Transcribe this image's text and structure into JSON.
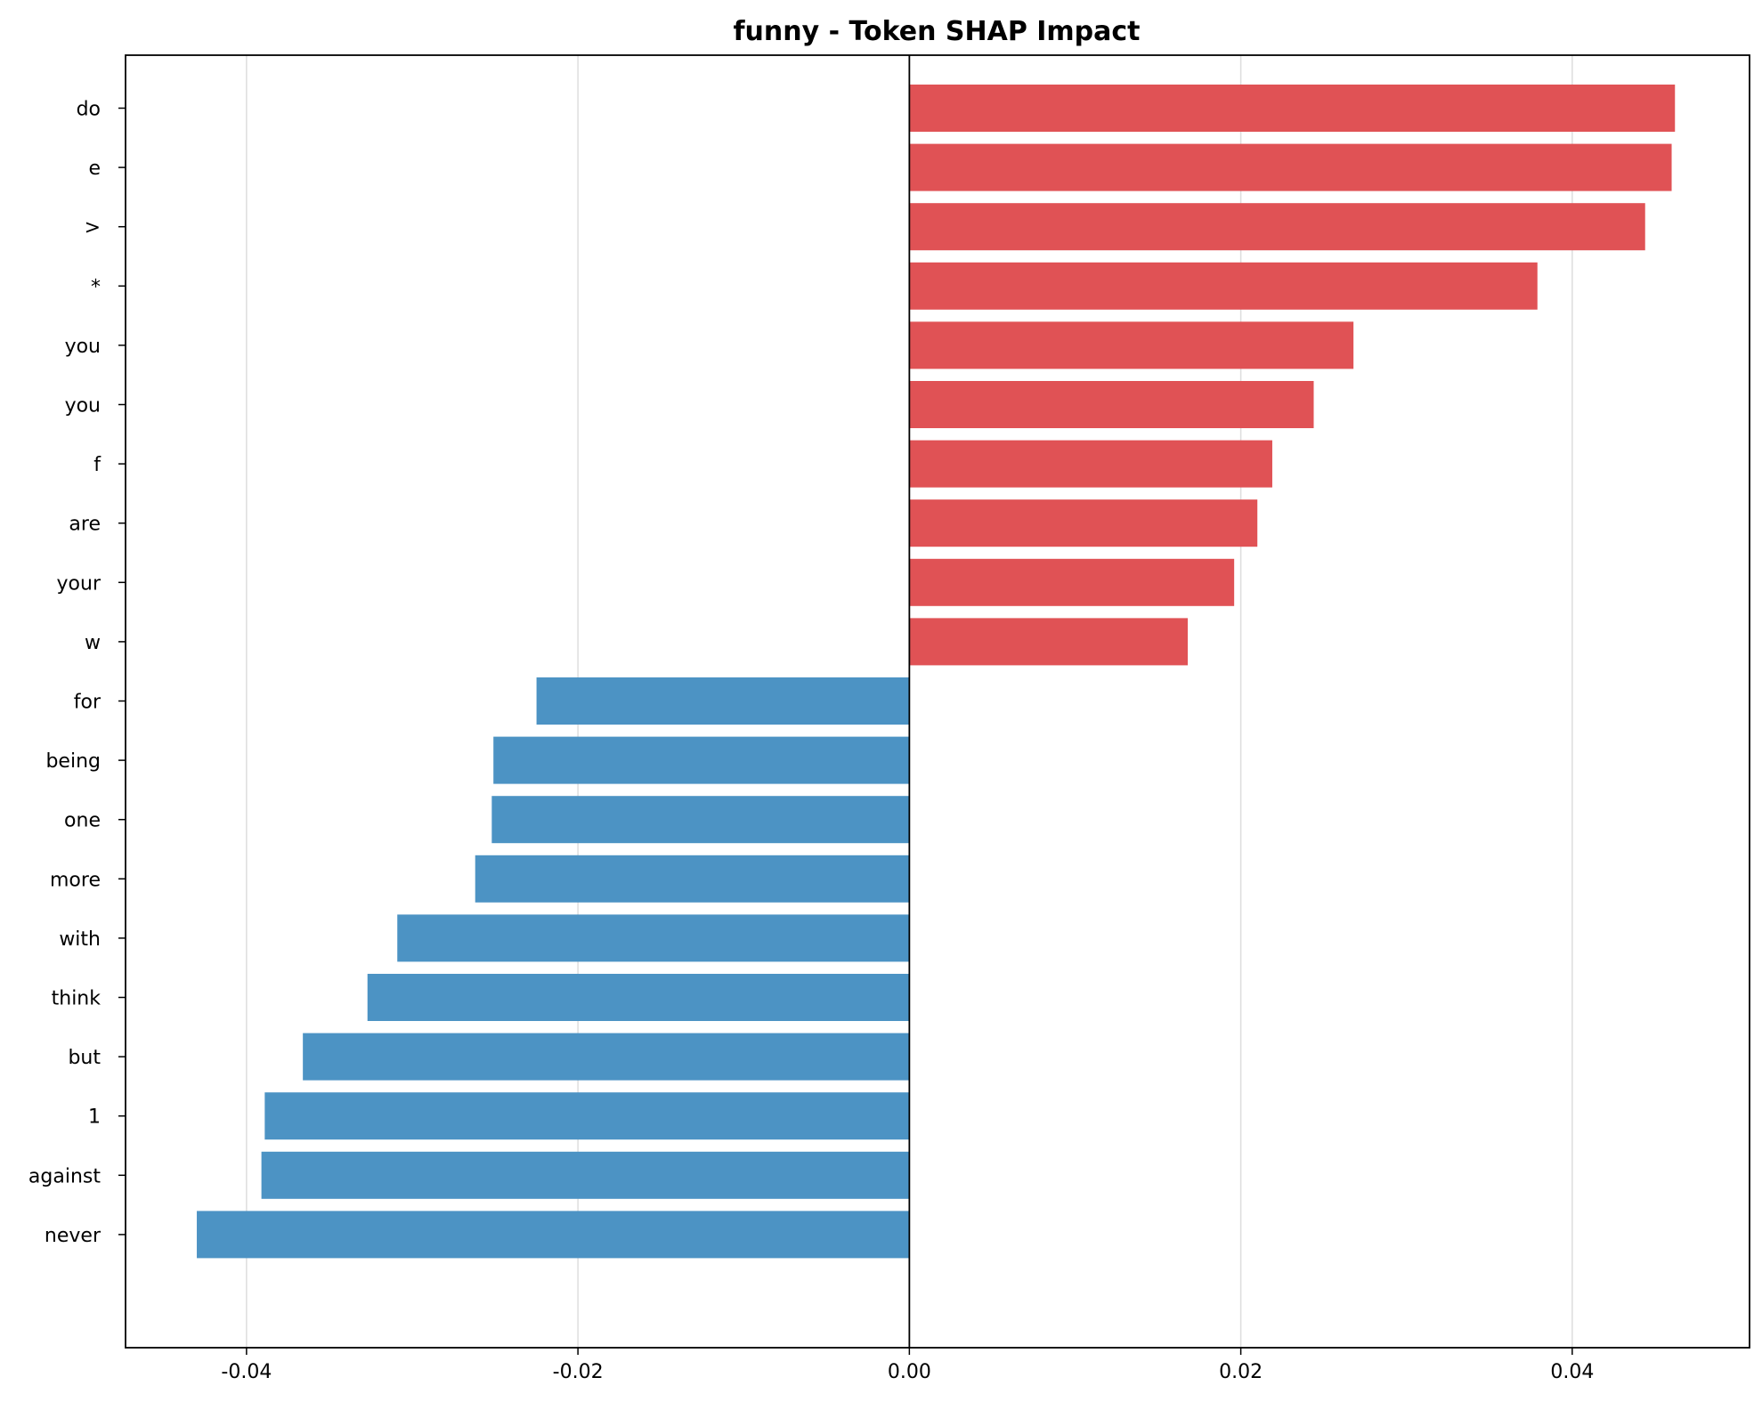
{
  "chart_data": {
    "type": "bar",
    "orientation": "horizontal",
    "title": "funny - Token SHAP Impact",
    "xlabel": "",
    "ylabel": "",
    "categories": [
      "do",
      "e",
      ">",
      "*",
      "you",
      "you",
      "f",
      "are",
      "your",
      "w",
      "for",
      "being",
      "one",
      "more",
      "with",
      "think",
      "but",
      "1",
      "against",
      "never"
    ],
    "values": [
      0.0462,
      0.046,
      0.0444,
      0.0379,
      0.0268,
      0.0244,
      0.0219,
      0.021,
      0.0196,
      0.0168,
      -0.0225,
      -0.0251,
      -0.0252,
      -0.0262,
      -0.0309,
      -0.0327,
      -0.0366,
      -0.0389,
      -0.0391,
      -0.043
    ],
    "xlim": [
      -0.0473,
      0.0507
    ],
    "xticks": [
      -0.04,
      -0.02,
      0.0,
      0.02,
      0.04
    ],
    "xtick_labels": [
      "-0.04",
      "-0.02",
      "0.00",
      "0.02",
      "0.04"
    ],
    "grid": "vertical",
    "colors": {
      "positive": "#e05255",
      "negative": "#4c93c4",
      "grid": "#dddddd",
      "zero_line": "#000000"
    }
  }
}
